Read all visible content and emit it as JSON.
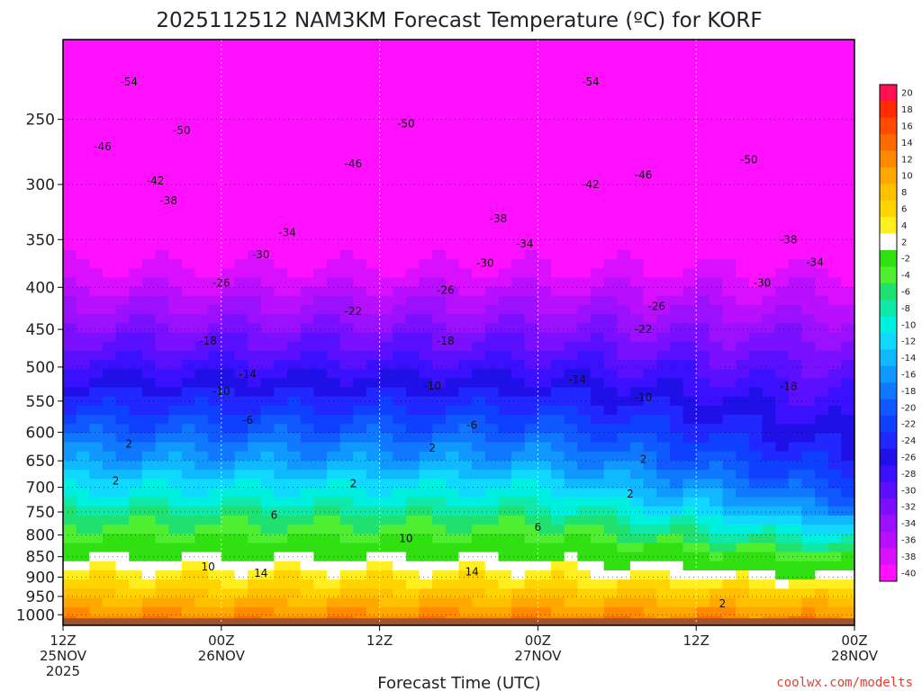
{
  "chart_data": {
    "type": "heatmap",
    "title": "2025112512 NAM3KM Forecast Temperature (ºC) for KORF",
    "xlabel": "Forecast Time (UTC)",
    "ylabel": "",
    "x_ticks": [
      {
        "hour": 0,
        "line1": "12Z",
        "line2": "25NOV",
        "line3": "2025"
      },
      {
        "hour": 12,
        "line1": "00Z",
        "line2": "26NOV",
        "line3": ""
      },
      {
        "hour": 24,
        "line1": "12Z",
        "line2": "",
        "line3": ""
      },
      {
        "hour": 36,
        "line1": "00Z",
        "line2": "27NOV",
        "line3": ""
      },
      {
        "hour": 48,
        "line1": "12Z",
        "line2": "",
        "line3": ""
      },
      {
        "hour": 60,
        "line1": "00Z",
        "line2": "28NOV",
        "line3": ""
      }
    ],
    "xlim": [
      0,
      60
    ],
    "ylim": [
      200,
      1030
    ],
    "y_scale": "log-pressure",
    "y_ticks": [
      250,
      300,
      350,
      400,
      450,
      500,
      550,
      600,
      650,
      700,
      750,
      800,
      850,
      900,
      950,
      1000
    ],
    "grid": true,
    "colorbar": {
      "placement": "right",
      "levels": [
        20,
        18,
        16,
        14,
        12,
        10,
        8,
        6,
        4,
        2,
        -2,
        -4,
        -6,
        -8,
        -10,
        -12,
        -14,
        -16,
        -18,
        -20,
        -22,
        -24,
        -26,
        -28,
        -30,
        -32,
        -34,
        -36,
        -38,
        -40
      ],
      "colors": [
        "#ff1050",
        "#ff2c00",
        "#ff4a00",
        "#ff6a00",
        "#ff8a00",
        "#ffa800",
        "#ffc000",
        "#ffd400",
        "#ffee20",
        "#ffffff",
        "#30e010",
        "#50ee30",
        "#20e070",
        "#10e8a8",
        "#00f0e0",
        "#10d8ff",
        "#10b8ff",
        "#1098ff",
        "#1078ff",
        "#1058ff",
        "#1040ff",
        "#2028ff",
        "#2010e8",
        "#3a10ff",
        "#5a10ff",
        "#7a10ff",
        "#9a10ff",
        "#b810ff",
        "#d810ff",
        "#ff10ff"
      ]
    },
    "contour_labels": [
      {
        "hour": 5,
        "p": 225,
        "text": "-54"
      },
      {
        "hour": 40,
        "p": 225,
        "text": "-54"
      },
      {
        "hour": 9,
        "p": 258,
        "text": "-50"
      },
      {
        "hour": 26,
        "p": 253,
        "text": "-50"
      },
      {
        "hour": 52,
        "p": 280,
        "text": "-50"
      },
      {
        "hour": 3,
        "p": 270,
        "text": "-46"
      },
      {
        "hour": 22,
        "p": 283,
        "text": "-46"
      },
      {
        "hour": 40,
        "p": 300,
        "text": "-42"
      },
      {
        "hour": 7,
        "p": 297,
        "text": "-42"
      },
      {
        "hour": 44,
        "p": 292,
        "text": "-46"
      },
      {
        "hour": 8,
        "p": 314,
        "text": "-38"
      },
      {
        "hour": 33,
        "p": 330,
        "text": "-38"
      },
      {
        "hour": 55,
        "p": 350,
        "text": "-38"
      },
      {
        "hour": 17,
        "p": 343,
        "text": "-34"
      },
      {
        "hour": 35,
        "p": 354,
        "text": "-34"
      },
      {
        "hour": 57,
        "p": 373,
        "text": "-34"
      },
      {
        "hour": 15,
        "p": 365,
        "text": "-30"
      },
      {
        "hour": 32,
        "p": 374,
        "text": "-30"
      },
      {
        "hour": 53,
        "p": 395,
        "text": "-30"
      },
      {
        "hour": 12,
        "p": 395,
        "text": "-26"
      },
      {
        "hour": 29,
        "p": 403,
        "text": "-26"
      },
      {
        "hour": 45,
        "p": 422,
        "text": "-26"
      },
      {
        "hour": 22,
        "p": 428,
        "text": "-22"
      },
      {
        "hour": 44,
        "p": 450,
        "text": "-22"
      },
      {
        "hour": 11,
        "p": 465,
        "text": "-18"
      },
      {
        "hour": 29,
        "p": 465,
        "text": "-18"
      },
      {
        "hour": 55,
        "p": 528,
        "text": "-18"
      },
      {
        "hour": 14,
        "p": 510,
        "text": "-14"
      },
      {
        "hour": 39,
        "p": 518,
        "text": "-14"
      },
      {
        "hour": 12,
        "p": 535,
        "text": "-10"
      },
      {
        "hour": 28,
        "p": 527,
        "text": "-10"
      },
      {
        "hour": 44,
        "p": 545,
        "text": "-10"
      },
      {
        "hour": 14,
        "p": 580,
        "text": "-6"
      },
      {
        "hour": 31,
        "p": 588,
        "text": "-6"
      },
      {
        "hour": 5,
        "p": 620,
        "text": "2"
      },
      {
        "hour": 28,
        "p": 627,
        "text": "2"
      },
      {
        "hour": 44,
        "p": 647,
        "text": "2"
      },
      {
        "hour": 4,
        "p": 688,
        "text": "2"
      },
      {
        "hour": 22,
        "p": 693,
        "text": "2"
      },
      {
        "hour": 43,
        "p": 713,
        "text": "2"
      },
      {
        "hour": 16,
        "p": 757,
        "text": "6"
      },
      {
        "hour": 36,
        "p": 783,
        "text": "6"
      },
      {
        "hour": 26,
        "p": 808,
        "text": "10"
      },
      {
        "hour": 11,
        "p": 875,
        "text": "10"
      },
      {
        "hour": 15,
        "p": 890,
        "text": "14"
      },
      {
        "hour": 31,
        "p": 887,
        "text": "14"
      },
      {
        "hour": 50,
        "p": 970,
        "text": "2"
      }
    ]
  },
  "credit": "coolwx.com/modelts",
  "colors": {
    "credit": "#e04030",
    "ground": "#a0522d",
    "freezing_line": "#e0207a"
  }
}
